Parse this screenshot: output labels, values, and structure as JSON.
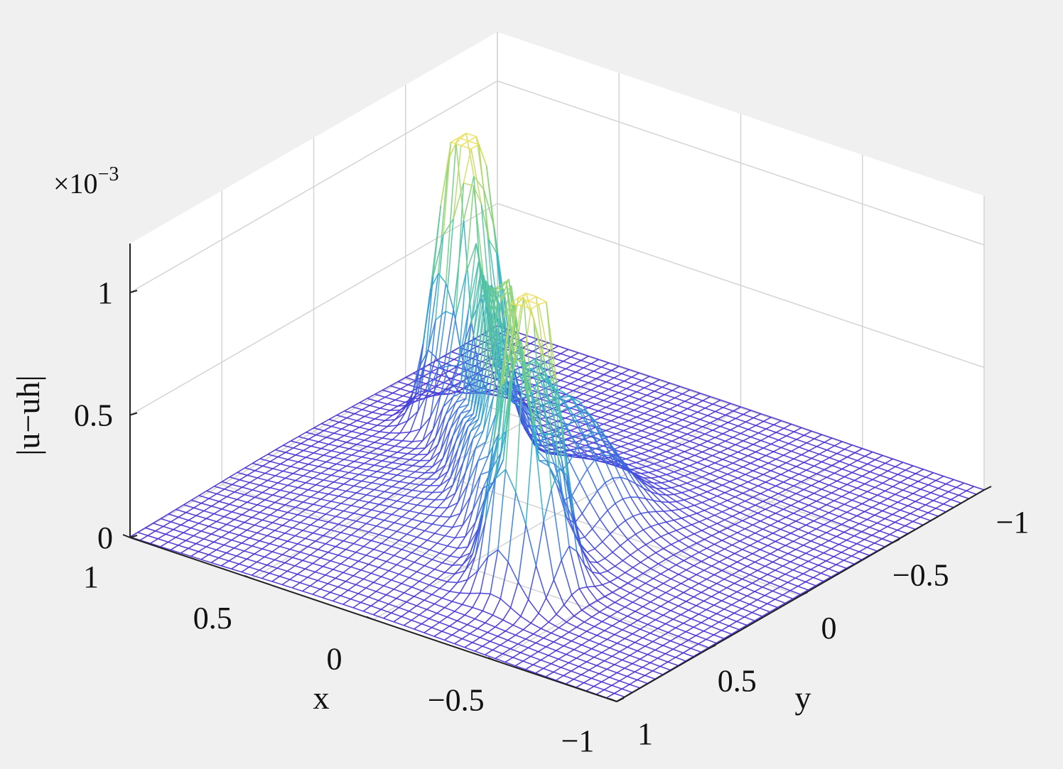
{
  "chart_data": {
    "type": "surface",
    "surface_style": "mesh",
    "colormap": [
      "#4a2bd1",
      "#3b6fe0",
      "#2fb6c9",
      "#7fd27a",
      "#f0e05a"
    ],
    "background": "#f0f0f0",
    "grid": true,
    "xlabel": "x",
    "ylabel": "y",
    "zlabel": "|u−uh|",
    "z_exponent": {
      "base": "×10",
      "power": "−3"
    },
    "xlim": [
      -1,
      1
    ],
    "ylim": [
      -1,
      1
    ],
    "zlim": [
      0,
      1.2
    ],
    "x_ticks": [
      {
        "value": 1,
        "label": "1"
      },
      {
        "value": 0.5,
        "label": "0.5"
      },
      {
        "value": 0,
        "label": "0"
      },
      {
        "value": -0.5,
        "label": "−0.5"
      },
      {
        "value": -1,
        "label": "−1"
      }
    ],
    "y_ticks": [
      {
        "value": -1,
        "label": "−1"
      },
      {
        "value": -0.5,
        "label": "−0.5"
      },
      {
        "value": 0,
        "label": "0"
      },
      {
        "value": 0.5,
        "label": "0.5"
      },
      {
        "value": 1,
        "label": "1"
      }
    ],
    "z_ticks": [
      {
        "value": 0,
        "label": "0"
      },
      {
        "value": 0.5,
        "label": "0.5"
      },
      {
        "value": 1,
        "label": "1"
      }
    ],
    "features": [
      {
        "kind": "ridge",
        "x0": 0.6,
        "y0": -0.3,
        "x1": -0.3,
        "y1": 0.55,
        "amplitude": 0.75,
        "width": 0.07
      },
      {
        "kind": "peak",
        "x": 0.6,
        "y": -0.3,
        "amplitude": 1.15,
        "width": 0.08
      },
      {
        "kind": "peak",
        "x": -0.3,
        "y": 0.55,
        "amplitude": 1.15,
        "width": 0.08
      },
      {
        "kind": "bump",
        "x": -0.1,
        "y": 0.1,
        "amplitude": 0.45,
        "width": 0.15
      },
      {
        "kind": "background_bump",
        "x": 0.1,
        "y": 0.15,
        "amplitude": 0.12,
        "width": 0.45
      }
    ]
  }
}
